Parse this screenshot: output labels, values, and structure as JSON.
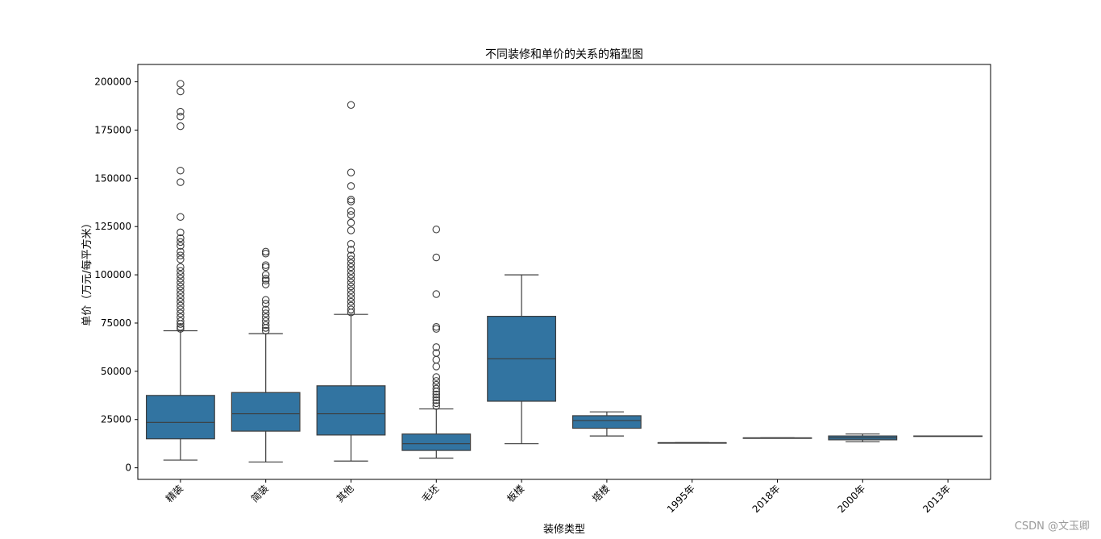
{
  "chart_data": {
    "type": "box",
    "title": "不同装修和单价的关系的箱型图",
    "xlabel": "装修类型",
    "ylabel": "单价（万元/每平方米）",
    "ylim": [
      -6000,
      209000
    ],
    "yticks": [
      0,
      25000,
      50000,
      75000,
      100000,
      125000,
      150000,
      175000,
      200000
    ],
    "grid": false,
    "colors": {
      "box": "#3274a1",
      "line": "#3d3d3d"
    },
    "categories": [
      "精装",
      "简装",
      "其他",
      "毛坯",
      "板楼",
      "塔楼",
      "1995年",
      "2018年",
      "2000年",
      "2013年"
    ],
    "boxes": [
      {
        "whisker_low": 4000,
        "q1": 15000,
        "median": 23500,
        "q3": 37500,
        "whisker_high": 71000,
        "outliers": [
          199000,
          195000,
          184500,
          182000,
          177000,
          154000,
          148000,
          130000,
          122000,
          119000,
          117000,
          115000,
          112000,
          110000,
          108000,
          104000,
          102000,
          100000,
          98000,
          96000,
          94000,
          92000,
          90000,
          88000,
          86000,
          84000,
          82000,
          80000,
          78000,
          76000,
          74500,
          73000,
          72000
        ]
      },
      {
        "whisker_low": 3000,
        "q1": 19000,
        "median": 28000,
        "q3": 39000,
        "whisker_high": 69500,
        "outliers": [
          112000,
          111000,
          105000,
          104000,
          100000,
          98000,
          97000,
          95000,
          87000,
          85000,
          82000,
          80000,
          78000,
          76000,
          74000,
          72500,
          71000
        ]
      },
      {
        "whisker_low": 3500,
        "q1": 17000,
        "median": 28000,
        "q3": 42500,
        "whisker_high": 79500,
        "outliers": [
          188000,
          153000,
          146000,
          139000,
          138000,
          133000,
          131000,
          127000,
          123000,
          116000,
          113000,
          110000,
          108000,
          106000,
          104000,
          102000,
          100000,
          98000,
          96000,
          94000,
          92000,
          90000,
          88000,
          86000,
          84000,
          82000,
          80500
        ]
      },
      {
        "whisker_low": 5000,
        "q1": 9000,
        "median": 12500,
        "q3": 17500,
        "whisker_high": 30500,
        "outliers": [
          123500,
          109000,
          90000,
          73000,
          72000,
          62500,
          59500,
          56000,
          52500,
          47000,
          45000,
          43000,
          41000,
          39500,
          38000,
          36500,
          35000,
          33500,
          32000
        ]
      },
      {
        "whisker_low": 12500,
        "q1": 34500,
        "median": 56500,
        "q3": 78500,
        "whisker_high": 100000,
        "outliers": []
      },
      {
        "whisker_low": 16500,
        "q1": 20500,
        "median": 24500,
        "q3": 27000,
        "whisker_high": 29000,
        "outliers": []
      },
      {
        "whisker_low": 13000,
        "q1": 13000,
        "median": 13000,
        "q3": 13000,
        "whisker_high": 13000,
        "outliers": []
      },
      {
        "whisker_low": 15500,
        "q1": 15500,
        "median": 15500,
        "q3": 15500,
        "whisker_high": 15500,
        "outliers": []
      },
      {
        "whisker_low": 13500,
        "q1": 14500,
        "median": 15500,
        "q3": 16500,
        "whisker_high": 17500,
        "outliers": []
      },
      {
        "whisker_low": 16500,
        "q1": 16500,
        "median": 16500,
        "q3": 16500,
        "whisker_high": 16500,
        "outliers": []
      }
    ]
  },
  "watermark": "CSDN @文玉卿"
}
